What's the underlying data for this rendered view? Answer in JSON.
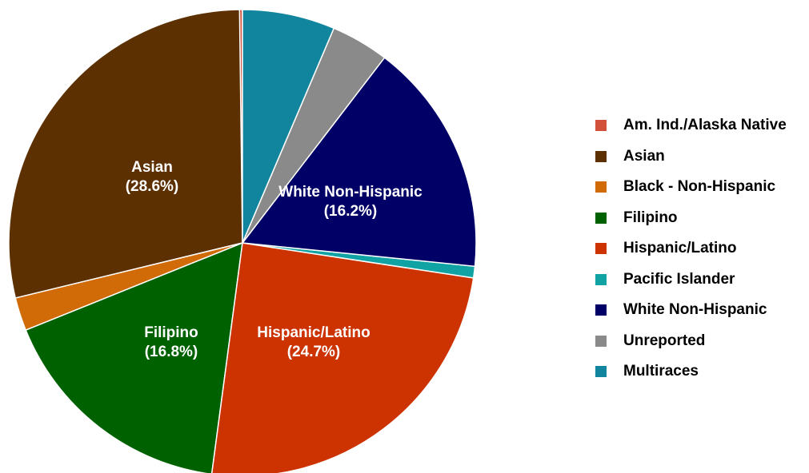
{
  "chart_data": {
    "type": "pie",
    "series": [
      {
        "name": "Am. Ind./Alaska Native",
        "value": 0.2,
        "color": "#d2513a"
      },
      {
        "name": "Asian",
        "value": 28.6,
        "color": "#5c3000",
        "label": "Asian",
        "pct_label": "(28.6%)"
      },
      {
        "name": "Black - Non-Hispanic",
        "value": 2.3,
        "color": "#d06b07"
      },
      {
        "name": "Filipino",
        "value": 16.8,
        "color": "#006100",
        "label": "Filipino",
        "pct_label": "(16.8%)"
      },
      {
        "name": "Hispanic/Latino",
        "value": 24.7,
        "color": "#cc3300",
        "label": "Hispanic/Latino",
        "pct_label": "(24.7%)"
      },
      {
        "name": "Pacific Islander",
        "value": 0.8,
        "color": "#11a3a3"
      },
      {
        "name": "White Non-Hispanic",
        "value": 16.2,
        "color": "#000066",
        "label": "White Non-Hispanic",
        "pct_label": "(16.2%)"
      },
      {
        "name": "Unreported",
        "value": 4.0,
        "color": "#8a8a8a"
      },
      {
        "name": "Multiraces",
        "value": 6.4,
        "color": "#12859e"
      }
    ],
    "legend_position": "right",
    "start": "top",
    "direction": "counterclockwise"
  }
}
